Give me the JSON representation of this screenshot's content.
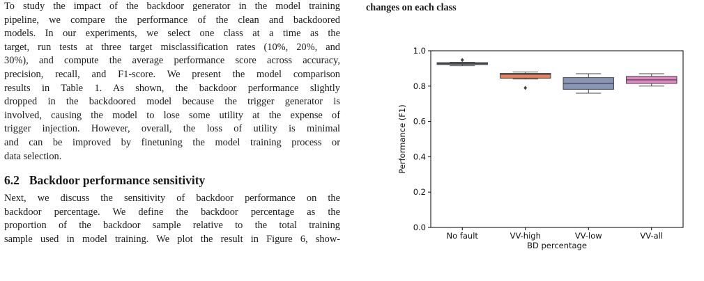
{
  "left_column": {
    "paragraph1_lines": [
      "To study the impact of the backdoor generator in the model training",
      "pipeline, we compare the performance of the clean and backdoored",
      "models. In our experiments, we select one class at a time as the",
      "target, run tests at three target misclassification rates (10%, 20%, and",
      "30%), and compute the average performance score across accuracy,",
      "precision, recall, and F1-score. We present the model comparison",
      "results in Table 1. As shown, the backdoor performance slightly",
      "dropped in the backdoored model because the trigger generator is",
      "involved, causing the model to lose some utility at the expense of",
      "trigger injection. However, overall, the loss of utility is minimal",
      "and can be improved by finetuning the model training process or",
      "data selection."
    ],
    "section": {
      "number": "6.2",
      "title": "Backdoor performance sensitivity"
    },
    "paragraph2_lines": [
      "Next, we discuss the sensitivity of backdoor performance on the",
      "backdoor percentage. We define the backdoor percentage as the",
      "proportion of the backdoor sample relative to the total training",
      "sample used in model training. We plot the result in Figure 6, show-"
    ]
  },
  "figure": {
    "caption_tail": "changes on each class"
  },
  "chart_data": {
    "type": "boxplot",
    "xlabel": "BD percentage",
    "ylabel": "Performance (F1)",
    "ylim": [
      0.0,
      1.0
    ],
    "yticks": [
      "0.0",
      "0.2",
      "0.4",
      "0.6",
      "0.8",
      "1.0"
    ],
    "grid": false,
    "categories": [
      "No fault",
      "VV-high",
      "VV-low",
      "VV-all"
    ],
    "boxes": [
      {
        "category": "No fault",
        "whisker_low": 0.915,
        "q1": 0.922,
        "median": 0.927,
        "q3": 0.933,
        "whisker_high": 0.935,
        "outliers": [
          0.948
        ],
        "color": "#5b7fa8"
      },
      {
        "category": "VV-high",
        "whisker_low": 0.84,
        "q1": 0.845,
        "median": 0.865,
        "q3": 0.872,
        "whisker_high": 0.88,
        "outliers": [
          0.79
        ],
        "color": "#e8825c"
      },
      {
        "category": "VV-low",
        "whisker_low": 0.76,
        "q1": 0.782,
        "median": 0.815,
        "q3": 0.848,
        "whisker_high": 0.87,
        "outliers": [],
        "color": "#8895b7"
      },
      {
        "category": "VV-all",
        "whisker_low": 0.8,
        "q1": 0.815,
        "median": 0.835,
        "q3": 0.855,
        "whisker_high": 0.87,
        "outliers": [],
        "color": "#e088c4"
      }
    ]
  }
}
